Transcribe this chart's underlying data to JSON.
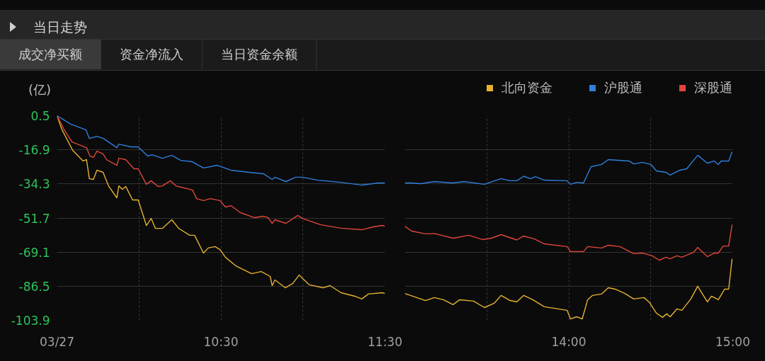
{
  "chart_data": [
    {
      "type": "line",
      "title": "当日走势",
      "annotations": [
        "成交净买额",
        "资金净流入",
        "当日资金余额"
      ],
      "ylabel": "(亿)",
      "xlim": [
        9.5,
        11.5
      ],
      "xticks": [
        {
          "value": 9.5,
          "label": "03/27"
        },
        {
          "value": 10,
          "label": null
        },
        {
          "value": 10.5,
          "label": "10:30"
        },
        {
          "value": 11,
          "label": null
        },
        {
          "value": 11.5,
          "label": "11:30"
        }
      ],
      "ylim": [
        -103.9,
        0.5
      ],
      "yticks": [
        0.5,
        -16.9,
        -34.3,
        -51.7,
        -69.1,
        -86.5,
        -103.9
      ],
      "grid": true,
      "series": [
        {
          "color": "#e6b230",
          "x": [
            9.5,
            9.529,
            9.596,
            9.659,
            9.68,
            9.697,
            9.722,
            9.743,
            9.781,
            9.814,
            9.865,
            9.877,
            9.898,
            9.919,
            9.961,
            9.995,
            10.045,
            10.074,
            10.1,
            10.142,
            10.2,
            10.242,
            10.309,
            10.339,
            10.393,
            10.422,
            10.464,
            10.494,
            10.527,
            10.59,
            10.687,
            10.745,
            10.8,
            10.812,
            10.829,
            10.892,
            10.938,
            10.976,
            11.039,
            11.123,
            11.165,
            11.232,
            11.316,
            11.358,
            11.399,
            11.483,
            11.5
          ],
          "values": [
            0.5,
            -6.4,
            -17.2,
            -22.6,
            -21.9,
            -31.6,
            -32,
            -27.3,
            -28.4,
            -35.3,
            -41.4,
            -35.3,
            -37.1,
            -35.6,
            -42.5,
            -42.5,
            -55.5,
            -51.9,
            -57,
            -57,
            -52.6,
            -57,
            -60.5,
            -60.5,
            -69.6,
            -67,
            -66.3,
            -67.8,
            -71.7,
            -76.1,
            -80.1,
            -79,
            -81.5,
            -86.2,
            -83.3,
            -87.3,
            -85.1,
            -80.8,
            -85.8,
            -87.3,
            -86.2,
            -89.8,
            -91.6,
            -93,
            -90.5,
            -89.8,
            -90.2
          ]
        },
        {
          "color": "#2f7fdc",
          "x": [
            9.5,
            9.584,
            9.676,
            9.697,
            9.743,
            9.781,
            9.865,
            9.877,
            9.949,
            9.995,
            10.053,
            10.079,
            10.142,
            10.2,
            10.255,
            10.326,
            10.393,
            10.477,
            10.561,
            10.674,
            10.758,
            10.812,
            10.829,
            10.896,
            10.955,
            10.997,
            11.093,
            11.232,
            11.358,
            11.458,
            11.5
          ],
          "values": [
            0.5,
            -3.8,
            -6.7,
            -11.1,
            -10,
            -11,
            -15.8,
            -14,
            -15.4,
            -15.4,
            -20.1,
            -19.4,
            -21.2,
            -19.7,
            -22.3,
            -23,
            -26.2,
            -24.8,
            -27.3,
            -28.4,
            -29.1,
            -32,
            -30.9,
            -33.1,
            -30.9,
            -30.9,
            -32.4,
            -33.5,
            -34.9,
            -33.8,
            -33.8
          ]
        },
        {
          "color": "#e0463a",
          "x": [
            9.5,
            9.542,
            9.592,
            9.68,
            9.701,
            9.722,
            9.743,
            9.781,
            9.802,
            9.865,
            9.877,
            9.919,
            9.97,
            9.995,
            10.045,
            10.074,
            10.116,
            10.142,
            10.192,
            10.225,
            10.326,
            10.351,
            10.393,
            10.435,
            10.494,
            10.527,
            10.561,
            10.619,
            10.703,
            10.758,
            10.787,
            10.812,
            10.829,
            10.896,
            10.968,
            10.997,
            11.106,
            11.232,
            11.358,
            11.429,
            11.483,
            11.5
          ],
          "values": [
            0.5,
            -6.4,
            -12.9,
            -15.8,
            -20.1,
            -20.8,
            -17.6,
            -19,
            -21.9,
            -24.8,
            -21.2,
            -21.9,
            -26.6,
            -26.6,
            -34.5,
            -32.7,
            -35.6,
            -35.3,
            -32.7,
            -35.3,
            -37.4,
            -41.8,
            -42.8,
            -41.8,
            -42.8,
            -46.1,
            -45.4,
            -49,
            -51.5,
            -50.8,
            -51.5,
            -54.4,
            -52.6,
            -54.4,
            -50.4,
            -51.9,
            -55.1,
            -56.9,
            -57.7,
            -56.2,
            -55.5,
            -55.9
          ]
        }
      ]
    },
    {
      "type": "line",
      "xlim": [
        13,
        15
      ],
      "xticks": [
        {
          "value": 13.5,
          "label": null
        },
        {
          "value": 14,
          "label": "14:00"
        },
        {
          "value": 14.5,
          "label": null
        },
        {
          "value": 15,
          "label": "15:00"
        }
      ],
      "ylim": [
        -103.9,
        0.5
      ],
      "yticks": [
        0.5,
        -16.9,
        -34.3,
        -51.7,
        -69.1,
        -86.5,
        -103.9
      ],
      "tick_labels": "x",
      "grid": true,
      "legend": "top right",
      "series": [
        {
          "name": "北向资金",
          "color": "#e6b230",
          "x": [
            13,
            13.126,
            13.18,
            13.235,
            13.294,
            13.335,
            13.419,
            13.486,
            13.545,
            13.587,
            13.642,
            13.683,
            13.725,
            13.78,
            13.851,
            13.99,
            14.01,
            14.048,
            14.082,
            14.115,
            14.145,
            14.199,
            14.241,
            14.283,
            14.342,
            14.396,
            14.459,
            14.493,
            14.535,
            14.572,
            14.597,
            14.618,
            14.66,
            14.69,
            14.744,
            14.786,
            14.845,
            14.87,
            14.912,
            14.95,
            14.975,
            14.996
          ],
          "values": [
            -90.2,
            -93.8,
            -92.3,
            -93.4,
            -95.9,
            -93.4,
            -94.1,
            -97.4,
            -95.2,
            -91.2,
            -93.8,
            -94.5,
            -91.2,
            -93.4,
            -97,
            -98.8,
            -103.2,
            -102.1,
            -103.2,
            -93.4,
            -91.2,
            -90.5,
            -87.3,
            -88,
            -90.2,
            -93,
            -92.3,
            -94.9,
            -100.3,
            -102.4,
            -100.6,
            -102.1,
            -98.1,
            -98.8,
            -93,
            -86.5,
            -94.5,
            -91.6,
            -93.4,
            -88,
            -88,
            -72.5
          ]
        },
        {
          "name": "沪股通",
          "color": "#2f7fdc",
          "x": [
            13,
            13.042,
            13.096,
            13.18,
            13.294,
            13.361,
            13.486,
            13.587,
            13.642,
            13.683,
            13.725,
            13.767,
            13.797,
            13.851,
            13.99,
            14.01,
            14.048,
            14.09,
            14.136,
            14.199,
            14.241,
            14.367,
            14.396,
            14.451,
            14.501,
            14.535,
            14.593,
            14.618,
            14.677,
            14.719,
            14.786,
            14.845,
            14.887,
            14.912,
            14.929,
            14.975,
            14.996
          ],
          "values": [
            -33.8,
            -33.8,
            -34.2,
            -33.1,
            -33.8,
            -33.1,
            -34.5,
            -31.6,
            -32.7,
            -32.7,
            -30.4,
            -31.6,
            -30.6,
            -32.4,
            -32.7,
            -34.5,
            -33.5,
            -33.8,
            -25.5,
            -24.4,
            -21.9,
            -22.6,
            -24.1,
            -23.3,
            -24.4,
            -27.7,
            -28.4,
            -29.8,
            -27.3,
            -26.6,
            -19.7,
            -23.7,
            -22.6,
            -24.4,
            -22.6,
            -22.6,
            -17.9
          ]
        },
        {
          "name": "深股通",
          "color": "#e0463a",
          "x": [
            13,
            13.042,
            13.126,
            13.18,
            13.294,
            13.39,
            13.474,
            13.528,
            13.587,
            13.683,
            13.725,
            13.788,
            13.851,
            13.99,
            14.01,
            14.09,
            14.115,
            14.199,
            14.241,
            14.312,
            14.396,
            14.451,
            14.509,
            14.551,
            14.593,
            14.618,
            14.66,
            14.69,
            14.761,
            14.786,
            14.845,
            14.887,
            14.912,
            14.941,
            14.975,
            14.996
          ],
          "values": [
            -55.9,
            -58.4,
            -59.8,
            -59.6,
            -62,
            -60.5,
            -62.7,
            -62,
            -60.2,
            -62.9,
            -60.9,
            -62.3,
            -64.9,
            -66.3,
            -68.8,
            -68.8,
            -66.3,
            -67,
            -65.6,
            -66.3,
            -69.9,
            -69.6,
            -71,
            -73.2,
            -71.7,
            -72.5,
            -71,
            -71.7,
            -69.2,
            -66.7,
            -71.4,
            -69.6,
            -69.6,
            -66,
            -66,
            -55.1
          ]
        }
      ]
    }
  ]
}
